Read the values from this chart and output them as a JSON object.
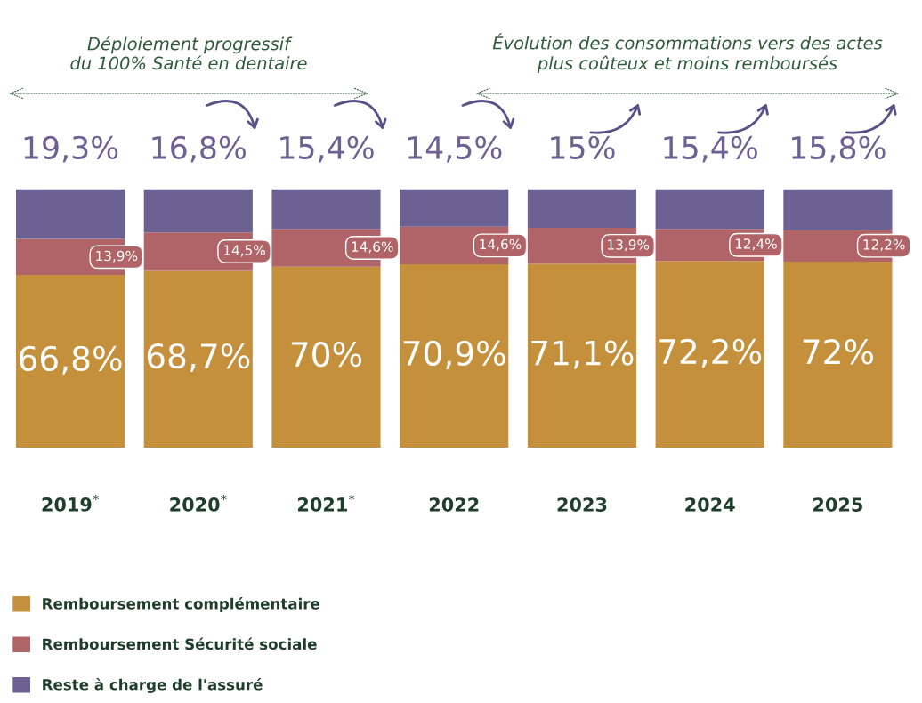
{
  "chart_data": {
    "type": "bar",
    "stacked": true,
    "legend": "bottom",
    "categories": [
      "2019$^{*}$",
      "2020$^{*}$",
      "2021$^{*}$",
      "2022",
      "2023",
      "2024",
      "2025"
    ],
    "series": [
      {
        "name": "Remboursement complémentaire",
        "color": "#c4903c",
        "values": [
          66.8,
          68.7,
          70,
          70.9,
          71.1,
          72.2,
          72
        ],
        "value_labels": [
          "66,8%",
          "68,7%",
          "70%",
          "70,9%",
          "71,1%",
          "72,2%",
          "72%"
        ]
      },
      {
        "name": "Remboursement Sécurité sociale",
        "color": "#b06468",
        "values": [
          13.9,
          14.5,
          14.6,
          14.6,
          13.9,
          12.4,
          12.2
        ],
        "value_labels": [
          "13,9%",
          "14,5%",
          "14,6%",
          "14,6%",
          "13,9%",
          "12,4%",
          "12,2%"
        ]
      },
      {
        "name": "Reste à charge de l'assuré",
        "color": "#6b6193",
        "values": [
          19.3,
          16.8,
          15.4,
          14.5,
          15,
          15.4,
          15.8
        ],
        "value_labels": [
          "19,3%",
          "16,8%",
          "15,4%",
          "14,5%",
          "15%",
          "15,4%",
          "15,8%"
        ]
      }
    ],
    "annotations": [
      "Déploiement progressif\ndu 100% Santé en dentaire",
      "Évolution des consommations vers des actes\nplus coûteux et moins remboursés"
    ]
  }
}
